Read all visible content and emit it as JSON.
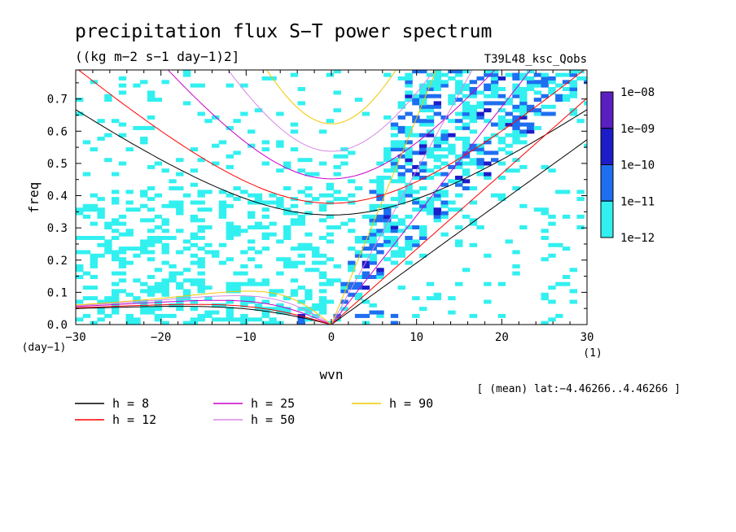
{
  "chart_data": {
    "type": "heatmap",
    "title": "precipitation flux S−T power spectrum",
    "subtitle": "((kg m−2 s−1 day−1)2]",
    "run_label": "T39L48_ksc_Qobs",
    "xlabel": "wvn",
    "ylabel": "freq",
    "x_unit": "(1)",
    "y_unit": "(day−1)",
    "xlim": [
      -30,
      30
    ],
    "ylim": [
      0,
      0.79
    ],
    "x_ticks": [
      "−30",
      "−20",
      "−10",
      "0",
      "10",
      "20",
      "30"
    ],
    "y_ticks": [
      "0.0",
      "0.1",
      "0.2",
      "0.3",
      "0.4",
      "0.5",
      "0.6",
      "0.7"
    ],
    "colorbar": {
      "labels": [
        "1e−08",
        "1e−09",
        "1e−10",
        "1e−11",
        "1e−12"
      ],
      "colors": [
        "#5a1fc0",
        "#1c1cc8",
        "#1e6ef0",
        "#32f0f0"
      ]
    },
    "dispersion_curves": [
      {
        "name": "h =  8",
        "h": 8,
        "color": "#000000"
      },
      {
        "name": "h = 12",
        "h": 12,
        "color": "#ff0000"
      },
      {
        "name": "h = 25",
        "h": 25,
        "color": "#c800c8"
      },
      {
        "name": "h = 50",
        "h": 50,
        "color": "#d787e6"
      },
      {
        "name": "h = 90",
        "h": 90,
        "color": "#f0c800"
      }
    ],
    "footnote": "[ (mean) lat:−4.46266..4.46266 ]"
  }
}
